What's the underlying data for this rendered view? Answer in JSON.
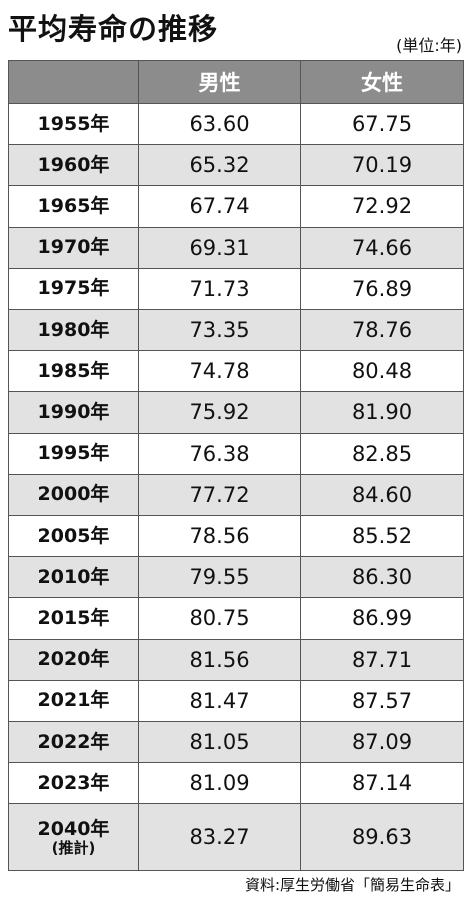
{
  "header": {
    "title": "平均寿命の推移",
    "unit": "(単位:年)"
  },
  "table": {
    "columns": [
      "男性",
      "女性"
    ],
    "rows": [
      {
        "year": "1955年",
        "male": "63.60",
        "female": "67.75"
      },
      {
        "year": "1960年",
        "male": "65.32",
        "female": "70.19"
      },
      {
        "year": "1965年",
        "male": "67.74",
        "female": "72.92"
      },
      {
        "year": "1970年",
        "male": "69.31",
        "female": "74.66"
      },
      {
        "year": "1975年",
        "male": "71.73",
        "female": "76.89"
      },
      {
        "year": "1980年",
        "male": "73.35",
        "female": "78.76"
      },
      {
        "year": "1985年",
        "male": "74.78",
        "female": "80.48"
      },
      {
        "year": "1990年",
        "male": "75.92",
        "female": "81.90"
      },
      {
        "year": "1995年",
        "male": "76.38",
        "female": "82.85"
      },
      {
        "year": "2000年",
        "male": "77.72",
        "female": "84.60"
      },
      {
        "year": "2005年",
        "male": "78.56",
        "female": "85.52"
      },
      {
        "year": "2010年",
        "male": "79.55",
        "female": "86.30"
      },
      {
        "year": "2015年",
        "male": "80.75",
        "female": "86.99"
      },
      {
        "year": "2020年",
        "male": "81.56",
        "female": "87.71"
      },
      {
        "year": "2021年",
        "male": "81.47",
        "female": "87.57"
      },
      {
        "year": "2022年",
        "male": "81.05",
        "female": "87.09"
      },
      {
        "year": "2023年",
        "male": "81.09",
        "female": "87.14"
      },
      {
        "year": "2040年",
        "note": "(推計)",
        "male": "83.27",
        "female": "89.63"
      }
    ]
  },
  "footer": {
    "source": "資料:厚生労働省「簡易生命表」"
  }
}
